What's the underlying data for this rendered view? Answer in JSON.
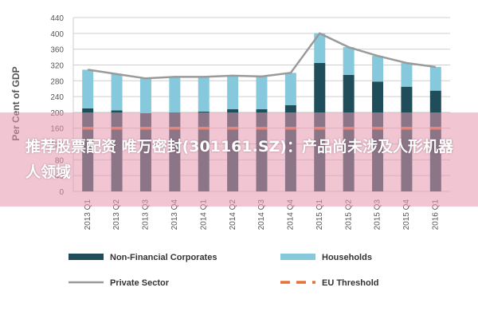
{
  "chart_data": {
    "type": "bar",
    "ylabel": "Per Cent of GDP",
    "ylim": [
      0,
      440
    ],
    "yticks": [
      0,
      40,
      80,
      120,
      160,
      200,
      240,
      280,
      320,
      360,
      400,
      440
    ],
    "categories": [
      "2013 Q1",
      "2013 Q2",
      "2013 Q3",
      "2013 Q4",
      "2014 Q1",
      "2014 Q2",
      "2014 Q3",
      "2014 Q4",
      "2015 Q1",
      "2015 Q2",
      "2015 Q3",
      "2015 Q4",
      "2016 Q1"
    ],
    "series": [
      {
        "name": "Non-Financial Corporates",
        "kind": "bar",
        "color": "#1f4e5a",
        "values": [
          210,
          205,
          198,
          200,
          202,
          208,
          208,
          218,
          325,
          295,
          278,
          265,
          255
        ]
      },
      {
        "name": "Households",
        "kind": "bar",
        "color": "#86c9dc",
        "values": [
          98,
          92,
          88,
          90,
          88,
          85,
          83,
          82,
          75,
          70,
          65,
          60,
          60
        ]
      },
      {
        "name": "Private Sector",
        "kind": "line",
        "color": "#9a9a9a",
        "values": [
          308,
          297,
          286,
          290,
          290,
          293,
          291,
          300,
          400,
          365,
          343,
          325,
          315
        ]
      },
      {
        "name": "EU Threshold",
        "kind": "line-dashed",
        "color": "#e8713a",
        "values": [
          160,
          160,
          160,
          160,
          160,
          160,
          160,
          160,
          160,
          160,
          160,
          160,
          160
        ]
      }
    ]
  },
  "legend": {
    "ncf": "Non-Financial Corporates",
    "households": "Households",
    "private": "Private Sector",
    "eu": "EU Threshold"
  },
  "banner": {
    "text": "推荐股票配资 唯万密封(301161.SZ)：产品尚未涉及人形机器人领域"
  },
  "colors": {
    "ncf": "#1f4e5a",
    "households": "#86c9dc",
    "private": "#9a9a9a",
    "eu": "#e8713a",
    "banner": "#e896af"
  }
}
